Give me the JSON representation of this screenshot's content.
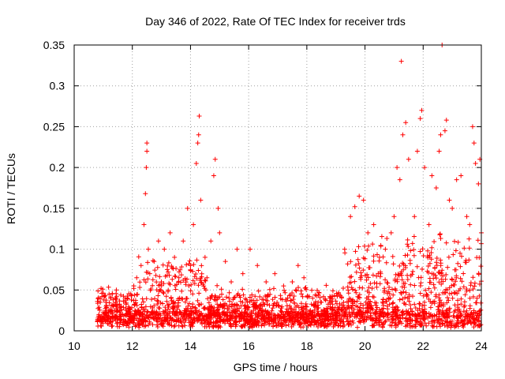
{
  "chart_data": {
    "type": "scatter",
    "title": "Day 346 of 2022, Rate Of TEC Index for receiver trds",
    "xlabel": "GPS time / hours",
    "ylabel": "ROTI / TECUs",
    "xlim": [
      10,
      24
    ],
    "ylim": [
      0,
      0.35
    ],
    "xticks": [
      10,
      12,
      14,
      16,
      18,
      20,
      22,
      24
    ],
    "xtick_labels": [
      "10",
      "12",
      "14",
      "16",
      "18",
      "20",
      "22",
      "24"
    ],
    "yticks": [
      0,
      0.05,
      0.1,
      0.15,
      0.2,
      0.25,
      0.3,
      0.35
    ],
    "ytick_labels": [
      "0",
      "0.05",
      "0.1",
      "0.15",
      "0.2",
      "0.25",
      "0.3",
      "0.35"
    ],
    "grid": true,
    "marker": "+",
    "color": "#ff0000",
    "series": [
      {
        "name": "ROTI",
        "points": [
          [
            10.85,
            0.02
          ],
          [
            10.9,
            0.035
          ],
          [
            11.0,
            0.015
          ],
          [
            11.1,
            0.03
          ],
          [
            11.2,
            0.045
          ],
          [
            11.3,
            0.025
          ],
          [
            11.45,
            0.05
          ],
          [
            11.6,
            0.03
          ],
          [
            11.75,
            0.04
          ],
          [
            11.9,
            0.02
          ],
          [
            12.05,
            0.055
          ],
          [
            12.15,
            0.065
          ],
          [
            12.3,
            0.08
          ],
          [
            12.4,
            0.13
          ],
          [
            12.45,
            0.168
          ],
          [
            12.48,
            0.2
          ],
          [
            12.5,
            0.22
          ],
          [
            12.5,
            0.23
          ],
          [
            12.55,
            0.1
          ],
          [
            12.6,
            0.07
          ],
          [
            12.75,
            0.085
          ],
          [
            12.9,
            0.11
          ],
          [
            13.0,
            0.06
          ],
          [
            13.1,
            0.1
          ],
          [
            13.2,
            0.075
          ],
          [
            13.3,
            0.12
          ],
          [
            13.45,
            0.09
          ],
          [
            13.6,
            0.065
          ],
          [
            13.75,
            0.11
          ],
          [
            13.9,
            0.15
          ],
          [
            14.0,
            0.08
          ],
          [
            14.1,
            0.13
          ],
          [
            14.2,
            0.205
          ],
          [
            14.25,
            0.23
          ],
          [
            14.28,
            0.24
          ],
          [
            14.3,
            0.263
          ],
          [
            14.35,
            0.16
          ],
          [
            14.5,
            0.09
          ],
          [
            14.7,
            0.11
          ],
          [
            14.8,
            0.19
          ],
          [
            14.85,
            0.21
          ],
          [
            14.95,
            0.15
          ],
          [
            15.0,
            0.12
          ],
          [
            15.2,
            0.085
          ],
          [
            15.4,
            0.06
          ],
          [
            15.6,
            0.1
          ],
          [
            15.8,
            0.07
          ],
          [
            16.05,
            0.1
          ],
          [
            16.3,
            0.08
          ],
          [
            16.6,
            0.06
          ],
          [
            16.9,
            0.07
          ],
          [
            17.2,
            0.055
          ],
          [
            17.5,
            0.06
          ],
          [
            17.7,
            0.08
          ],
          [
            17.9,
            0.065
          ],
          [
            18.2,
            0.04
          ],
          [
            18.5,
            0.035
          ],
          [
            18.8,
            0.04
          ],
          [
            19.1,
            0.045
          ],
          [
            19.3,
            0.1
          ],
          [
            19.5,
            0.14
          ],
          [
            19.65,
            0.152
          ],
          [
            19.8,
            0.165
          ],
          [
            19.95,
            0.16
          ],
          [
            20.1,
            0.12
          ],
          [
            20.3,
            0.13
          ],
          [
            20.5,
            0.09
          ],
          [
            20.7,
            0.1
          ],
          [
            20.9,
            0.12
          ],
          [
            21.0,
            0.14
          ],
          [
            21.1,
            0.2
          ],
          [
            21.2,
            0.185
          ],
          [
            21.25,
            0.33
          ],
          [
            21.3,
            0.24
          ],
          [
            21.4,
            0.255
          ],
          [
            21.5,
            0.21
          ],
          [
            21.7,
            0.14
          ],
          [
            21.8,
            0.22
          ],
          [
            21.9,
            0.26
          ],
          [
            21.95,
            0.27
          ],
          [
            22.05,
            0.2
          ],
          [
            22.2,
            0.13
          ],
          [
            22.3,
            0.19
          ],
          [
            22.45,
            0.175
          ],
          [
            22.55,
            0.22
          ],
          [
            22.6,
            0.24
          ],
          [
            22.65,
            0.35
          ],
          [
            22.75,
            0.245
          ],
          [
            22.8,
            0.258
          ],
          [
            22.9,
            0.16
          ],
          [
            23.0,
            0.15
          ],
          [
            23.15,
            0.185
          ],
          [
            23.3,
            0.19
          ],
          [
            23.5,
            0.14
          ],
          [
            23.6,
            0.13
          ],
          [
            23.7,
            0.25
          ],
          [
            23.75,
            0.23
          ],
          [
            23.8,
            0.205
          ],
          [
            23.9,
            0.18
          ],
          [
            23.95,
            0.21
          ],
          [
            24.0,
            0.12
          ]
        ]
      }
    ]
  }
}
